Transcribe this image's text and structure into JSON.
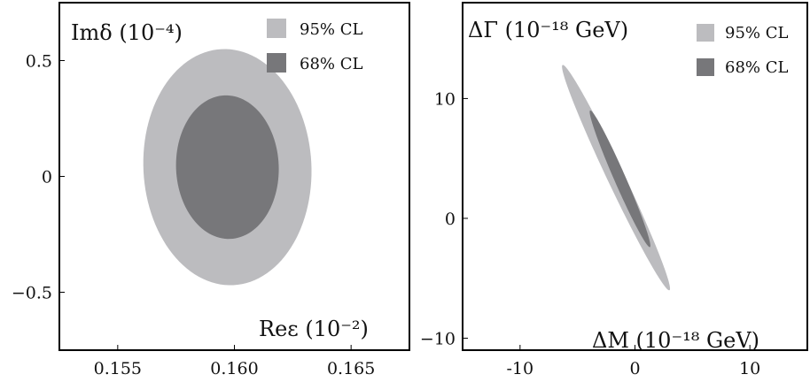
{
  "colors": {
    "cl95": "#bcbcbf",
    "cl68": "#77777a"
  },
  "chart_data": [
    {
      "type": "contour",
      "xlabel": "Reε  (10⁻²)",
      "ylabel": "Imδ  (10⁻⁴)",
      "xlim": [
        0.1525,
        0.1675
      ],
      "ylim": [
        -0.75,
        0.75
      ],
      "xticks": [
        {
          "value": 0.155,
          "label": "0.155"
        },
        {
          "value": 0.16,
          "label": "0.160"
        },
        {
          "value": 0.165,
          "label": "0.165"
        }
      ],
      "yticks": [
        {
          "value": 0.5,
          "label": "0.5"
        },
        {
          "value": 0,
          "label": "0"
        },
        {
          "value": -0.5,
          "label": "−0.5"
        }
      ],
      "legend": [
        {
          "name": "95% CL",
          "color": "#bcbcbf"
        },
        {
          "name": "68% CL",
          "color": "#77777a"
        }
      ],
      "legend_position": "top-right",
      "contours": [
        {
          "name": "95% CL",
          "center": [
            0.1597,
            0.04
          ],
          "semi_x": 0.0036,
          "semi_y": 0.51,
          "tilt": -0.05
        },
        {
          "name": "68% CL",
          "center": [
            0.1597,
            0.04
          ],
          "semi_x": 0.0022,
          "semi_y": 0.31,
          "tilt": -0.04
        }
      ]
    },
    {
      "type": "contour",
      "xlabel": "ΔM  (10⁻¹⁸ GeV)",
      "ylabel": "ΔΓ  (10⁻¹⁸ GeV)",
      "xlim": [
        -15,
        15
      ],
      "ylim": [
        -11,
        18
      ],
      "xticks": [
        {
          "value": -10,
          "label": "-10"
        },
        {
          "value": 0,
          "label": "0"
        },
        {
          "value": 10,
          "label": "10"
        }
      ],
      "yticks": [
        {
          "value": 10,
          "label": "10"
        },
        {
          "value": 0,
          "label": "0"
        },
        {
          "value": -10,
          "label": "−10"
        }
      ],
      "legend": [
        {
          "name": "95% CL",
          "color": "#bcbcbf"
        },
        {
          "name": "68% CL",
          "color": "#77777a"
        }
      ],
      "legend_position": "top-right",
      "contours": [
        {
          "name": "95% CL",
          "from": [
            -6.3,
            12.8
          ],
          "to": [
            3.0,
            -6.0
          ],
          "half_width": 0.75
        },
        {
          "name": "68% CL",
          "from": [
            -3.9,
            9.0
          ],
          "to": [
            1.3,
            -2.4
          ],
          "half_width": 0.5
        }
      ]
    }
  ]
}
